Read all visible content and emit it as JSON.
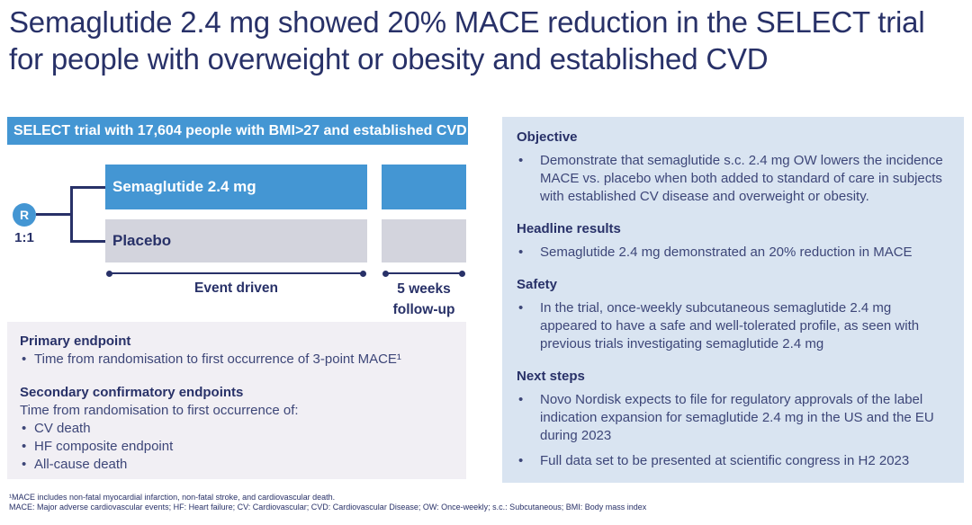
{
  "slide": {
    "title": "Semaglutide 2.4 mg showed 20% MACE reduction in the SELECT trial for people with overweight or obesity and established CVD",
    "bullet_char": "•"
  },
  "trial_diagram": {
    "header": "SELECT trial with 17,604 people with BMI>27 and established CVD",
    "randomization_label": "R",
    "ratio": "1:1",
    "arms": [
      {
        "label": "Semaglutide 2.4 mg"
      },
      {
        "label": "Placebo"
      }
    ],
    "main_phase_label": "Event driven",
    "followup_line1": "5 weeks",
    "followup_line2": "follow-up"
  },
  "endpoints_box": {
    "primary_heading": "Primary endpoint",
    "primary_bullet": "Time from randomisation to first occurrence of 3-point MACE¹",
    "secondary_heading": "Secondary confirmatory endpoints",
    "secondary_intro": "Time from randomisation to first occurrence of:",
    "secondary_bullets": [
      "CV death",
      "HF composite endpoint",
      "All-cause death"
    ]
  },
  "summary_panel": {
    "sections": [
      {
        "heading": "Objective",
        "bullets": [
          "Demonstrate that semaglutide s.c. 2.4 mg OW lowers the incidence MACE vs. placebo when both added to standard of care in subjects with established CV disease and overweight or obesity."
        ]
      },
      {
        "heading": "Headline results",
        "bullets": [
          "Semaglutide 2.4 mg demonstrated an 20% reduction in MACE"
        ]
      },
      {
        "heading": "Safety",
        "bullets": [
          "In the trial, once-weekly subcutaneous semaglutide 2.4 mg appeared to have a safe and well-tolerated profile, as seen with previous trials investigating semaglutide 2.4 mg"
        ]
      },
      {
        "heading": "Next steps",
        "bullets": [
          "Novo Nordisk expects to file for regulatory approvals of the label indication expansion for semaglutide 2.4 mg in the US and the EU during 2023",
          "Full data set to be presented at scientific congress in H2 2023"
        ]
      }
    ]
  },
  "footnotes": [
    "¹MACE includes non-fatal myocardial infarction, non-fatal stroke, and cardiovascular death.",
    "MACE: Major adverse cardiovascular events; HF: Heart failure; CV: Cardiovascular; CVD: Cardiovascular Disease; OW: Once-weekly; s.c.: Subcutaneous; BMI: Body mass index"
  ],
  "colors": {
    "navy": "#283168",
    "body_text": "#3d4678",
    "blue": "#4496d3",
    "gray_bar": "#d3d4dd",
    "panel_bg": "#d9e4f1",
    "endpoints_bg": "#f1eff4"
  }
}
